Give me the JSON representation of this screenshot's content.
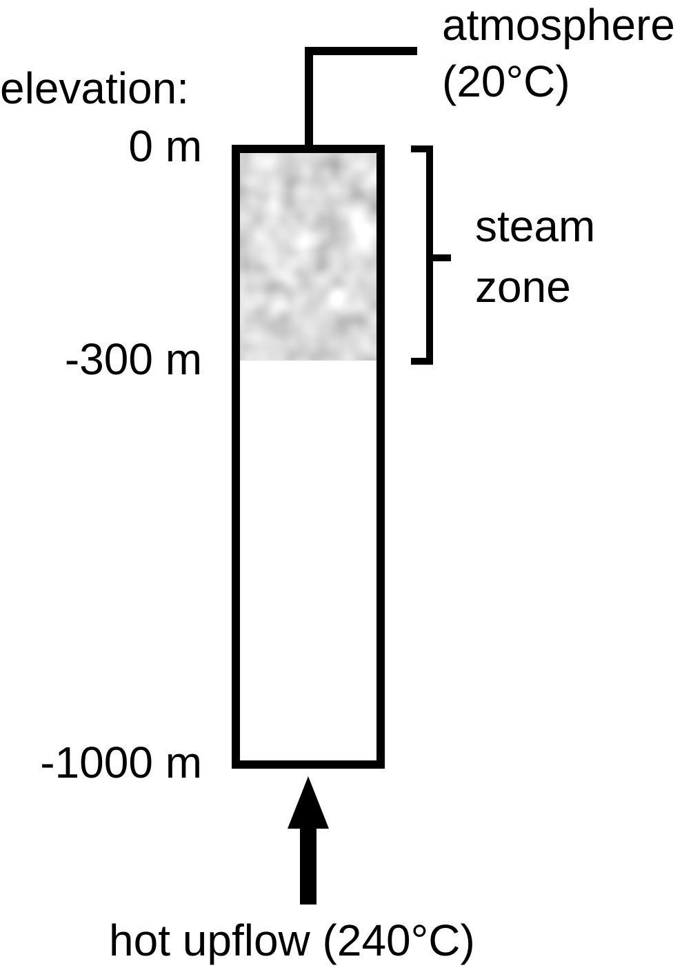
{
  "diagram": {
    "atmosphere": {
      "line1": "atmosphere",
      "line2": "(20°C)"
    },
    "elevation_title": "elevation:",
    "elevation_marks": [
      {
        "label": "0 m",
        "value_m": 0
      },
      {
        "label": "-300 m",
        "value_m": -300
      },
      {
        "label": "-1000 m",
        "value_m": -1000
      }
    ],
    "steam_zone": {
      "line1": "steam",
      "line2": "zone",
      "top_m": 0,
      "bottom_m": -300
    },
    "bottom_label": "hot upflow (240°C)",
    "colors": {
      "stroke": "#000000",
      "background": "#ffffff",
      "steam_fill": "#b3b3b3"
    }
  }
}
